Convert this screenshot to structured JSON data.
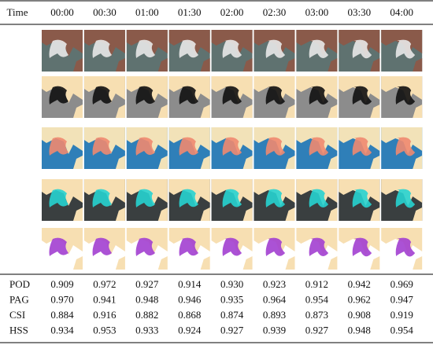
{
  "table": {
    "header": [
      "Time",
      "00:00",
      "00:30",
      "01:00",
      "01:30",
      "02:00",
      "02:30",
      "03:00",
      "03:30",
      "04:00"
    ],
    "rows": [
      [
        "POD",
        "0.909",
        "0.972",
        "0.927",
        "0.914",
        "0.930",
        "0.923",
        "0.912",
        "0.942",
        "0.969"
      ],
      [
        "PAG",
        "0.970",
        "0.941",
        "0.948",
        "0.946",
        "0.935",
        "0.964",
        "0.954",
        "0.962",
        "0.947"
      ],
      [
        "CSI",
        "0.884",
        "0.916",
        "0.882",
        "0.868",
        "0.874",
        "0.893",
        "0.873",
        "0.908",
        "0.919"
      ],
      [
        "HSS",
        "0.934",
        "0.953",
        "0.933",
        "0.924",
        "0.927",
        "0.939",
        "0.927",
        "0.948",
        "0.954"
      ]
    ]
  }
}
